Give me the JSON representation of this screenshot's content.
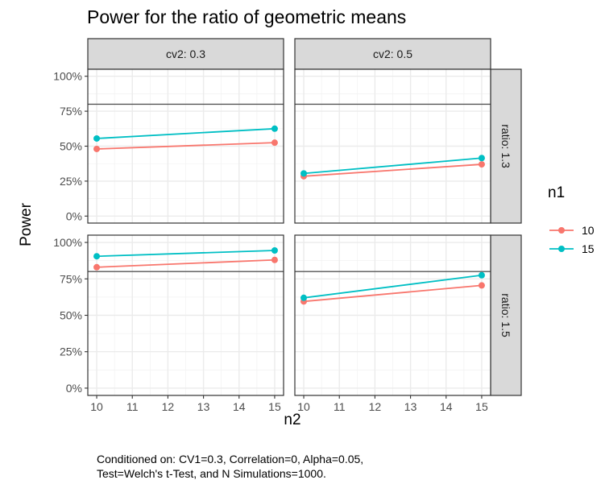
{
  "chart_data": {
    "type": "line",
    "title": "Power for the ratio of geometric means",
    "xlabel": "n2",
    "ylabel": "Power",
    "legend": {
      "title": "n1",
      "position": "right",
      "entries": [
        {
          "label": "10",
          "color": "#F8766D"
        },
        {
          "label": "15",
          "color": "#00BFC4"
        }
      ]
    },
    "x_ticks": [
      "10",
      "11",
      "12",
      "13",
      "14",
      "15"
    ],
    "y_ticks": [
      "0%",
      "25%",
      "50%",
      "75%",
      "100%"
    ],
    "xlim": [
      9.75,
      15.25
    ],
    "ylim": [
      -0.05,
      1.05
    ],
    "reference_line": 0.8,
    "grid": true,
    "column_strips": [
      "cv2: 0.3",
      "cv2: 0.5"
    ],
    "row_strips": [
      "ratio: 1.3",
      "ratio: 1.5"
    ],
    "panels": [
      {
        "row": 0,
        "col": 0,
        "series": [
          {
            "name": "10",
            "x": [
              10,
              15
            ],
            "values": [
              0.48,
              0.525
            ]
          },
          {
            "name": "15",
            "x": [
              10,
              15
            ],
            "values": [
              0.555,
              0.625
            ]
          }
        ]
      },
      {
        "row": 0,
        "col": 1,
        "series": [
          {
            "name": "10",
            "x": [
              10,
              15
            ],
            "values": [
              0.285,
              0.37
            ]
          },
          {
            "name": "15",
            "x": [
              10,
              15
            ],
            "values": [
              0.305,
              0.415
            ]
          }
        ]
      },
      {
        "row": 1,
        "col": 0,
        "series": [
          {
            "name": "10",
            "x": [
              10,
              15
            ],
            "values": [
              0.83,
              0.88
            ]
          },
          {
            "name": "15",
            "x": [
              10,
              15
            ],
            "values": [
              0.905,
              0.945
            ]
          }
        ]
      },
      {
        "row": 1,
        "col": 1,
        "series": [
          {
            "name": "10",
            "x": [
              10,
              15
            ],
            "values": [
              0.595,
              0.705
            ]
          },
          {
            "name": "15",
            "x": [
              10,
              15
            ],
            "values": [
              0.62,
              0.775
            ]
          }
        ]
      }
    ],
    "caption": [
      "Conditioned on: CV1=0.3, Correlation=0, Alpha=0.05,",
      "Test=Welch's t-Test, and N Simulations=1000."
    ]
  }
}
